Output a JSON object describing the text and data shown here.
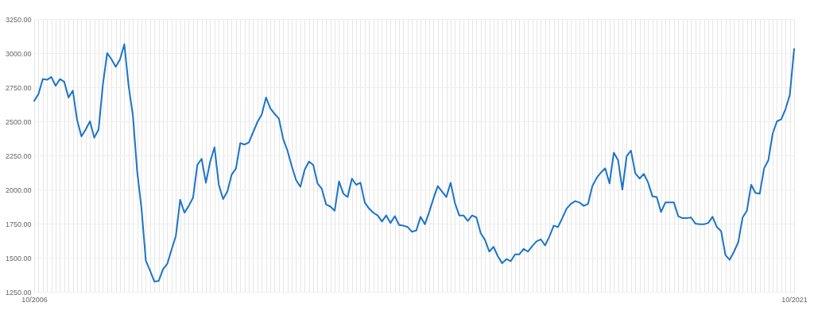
{
  "chart_data": {
    "type": "line",
    "categories": [
      "10/2006",
      null,
      null,
      null,
      null,
      null,
      null,
      null,
      null,
      null,
      null,
      null,
      null,
      null,
      null,
      null,
      null,
      null,
      null,
      null,
      null,
      null,
      null,
      null,
      null,
      null,
      null,
      null,
      null,
      null,
      null,
      null,
      null,
      null,
      null,
      null,
      null,
      null,
      null,
      null,
      null,
      null,
      null,
      null,
      null,
      null,
      null,
      null,
      null,
      null,
      null,
      null,
      null,
      null,
      null,
      null,
      null,
      null,
      null,
      null,
      null,
      null,
      null,
      null,
      null,
      null,
      null,
      null,
      null,
      null,
      null,
      null,
      null,
      null,
      null,
      null,
      null,
      null,
      null,
      null,
      null,
      null,
      null,
      null,
      null,
      null,
      null,
      null,
      null,
      null,
      null,
      null,
      null,
      null,
      null,
      null,
      null,
      null,
      null,
      null,
      null,
      null,
      null,
      null,
      null,
      null,
      null,
      null,
      null,
      null,
      null,
      null,
      null,
      null,
      null,
      null,
      null,
      null,
      null,
      null,
      null,
      null,
      null,
      null,
      null,
      null,
      null,
      null,
      null,
      null,
      null,
      null,
      null,
      null,
      null,
      null,
      null,
      null,
      null,
      null,
      null,
      null,
      null,
      null,
      null,
      null,
      null,
      null,
      null,
      null,
      null,
      null,
      null,
      null,
      null,
      null,
      null,
      null,
      null,
      null,
      null,
      null,
      null,
      null,
      null,
      null,
      null,
      null,
      null,
      null,
      null,
      null,
      null,
      null,
      null,
      null,
      null,
      "10/2021"
    ],
    "values": [
      2650,
      2700,
      2810,
      2805,
      2825,
      2760,
      2810,
      2790,
      2675,
      2725,
      2510,
      2390,
      2440,
      2500,
      2380,
      2440,
      2770,
      3000,
      2955,
      2900,
      2955,
      3065,
      2760,
      2540,
      2130,
      1860,
      1480,
      1405,
      1325,
      1330,
      1415,
      1455,
      1560,
      1660,
      1925,
      1830,
      1880,
      1940,
      2180,
      2225,
      2050,
      2205,
      2310,
      2035,
      1930,
      1985,
      2110,
      2155,
      2340,
      2330,
      2345,
      2420,
      2495,
      2550,
      2675,
      2595,
      2555,
      2520,
      2370,
      2285,
      2170,
      2070,
      2020,
      2145,
      2205,
      2180,
      2045,
      2005,
      1890,
      1875,
      1845,
      2060,
      1970,
      1945,
      2080,
      2035,
      2050,
      1905,
      1860,
      1830,
      1810,
      1765,
      1810,
      1755,
      1805,
      1740,
      1735,
      1725,
      1690,
      1700,
      1800,
      1745,
      1835,
      1935,
      2025,
      1985,
      1945,
      2050,
      1900,
      1810,
      1810,
      1770,
      1810,
      1795,
      1680,
      1630,
      1545,
      1580,
      1510,
      1460,
      1490,
      1475,
      1525,
      1525,
      1565,
      1545,
      1585,
      1620,
      1635,
      1590,
      1655,
      1735,
      1725,
      1790,
      1860,
      1895,
      1915,
      1905,
      1880,
      1895,
      2025,
      2085,
      2125,
      2155,
      2045,
      2270,
      2215,
      2000,
      2245,
      2285,
      2120,
      2080,
      2115,
      2050,
      1950,
      1945,
      1835,
      1905,
      1905,
      1905,
      1805,
      1790,
      1790,
      1795,
      1750,
      1745,
      1745,
      1755,
      1800,
      1725,
      1695,
      1520,
      1485,
      1545,
      1615,
      1795,
      1845,
      2035,
      1975,
      1970,
      2155,
      2215,
      2410,
      2500,
      2515,
      2590,
      2695,
      3030
    ],
    "color": "#1c74c8",
    "line_style": "solid",
    "ylim": [
      1250,
      3250
    ],
    "yticks": [
      {
        "value": 1250,
        "label": "1250.00"
      },
      {
        "value": 1500,
        "label": "1500.00"
      },
      {
        "value": 1750,
        "label": "1750.00"
      },
      {
        "value": 2000,
        "label": "2000.00"
      },
      {
        "value": 2250,
        "label": "2250.00"
      },
      {
        "value": 2500,
        "label": "2500.00"
      },
      {
        "value": 2750,
        "label": "2750.00"
      },
      {
        "value": 3000,
        "label": "3000.00"
      },
      {
        "value": 3250,
        "label": "3250.00"
      }
    ],
    "grid": true
  }
}
